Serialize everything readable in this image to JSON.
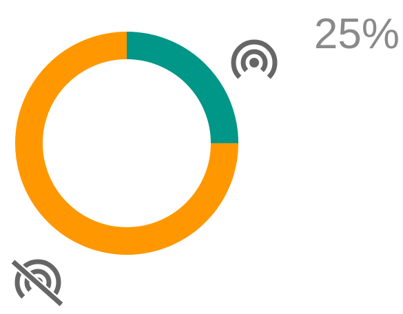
{
  "chart_data": {
    "type": "donut",
    "values": [
      25,
      75
    ],
    "value_labels": [
      "25%",
      null
    ],
    "colors": [
      "#009688",
      "#ff9800"
    ]
  }
}
